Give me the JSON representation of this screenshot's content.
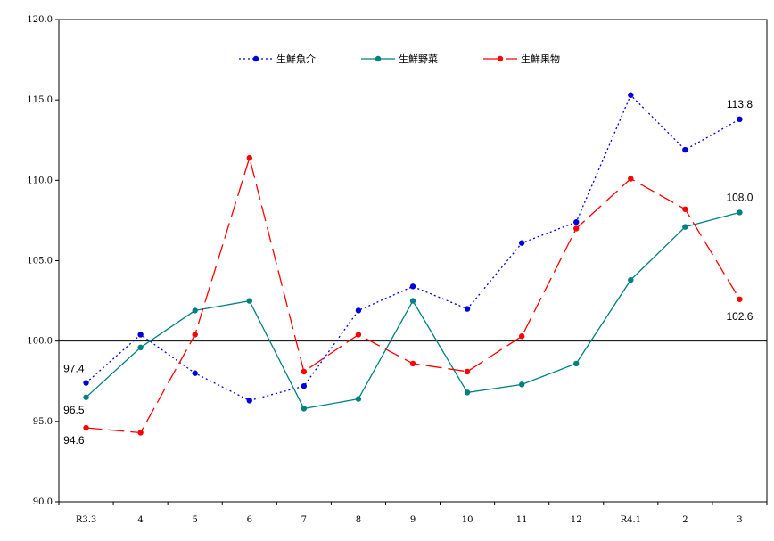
{
  "chart_data": {
    "type": "line",
    "categories": [
      "R3.3",
      "4",
      "5",
      "6",
      "7",
      "8",
      "9",
      "10",
      "11",
      "12",
      "R4.1",
      "2",
      "3"
    ],
    "ylim": [
      90,
      120
    ],
    "yticks": [
      "90.0",
      "95.0",
      "100.0",
      "105.0",
      "110.0",
      "115.0",
      "120.0"
    ],
    "reference_line": 100,
    "grid": false,
    "legend_position": "top",
    "series": [
      {
        "name": "生鮮魚介",
        "color": "#0000dd",
        "style": "dotted",
        "values": [
          97.4,
          100.4,
          98.0,
          96.3,
          97.2,
          101.9,
          103.4,
          102.0,
          106.1,
          107.4,
          115.3,
          111.9,
          113.8
        ]
      },
      {
        "name": "生鮮野菜",
        "color": "#008080",
        "style": "solid",
        "values": [
          96.5,
          99.6,
          101.9,
          102.5,
          95.8,
          96.4,
          102.5,
          96.8,
          97.3,
          98.6,
          103.8,
          107.1,
          108.0
        ]
      },
      {
        "name": "生鮮果物",
        "color": "#ff0000",
        "style": "dashed",
        "values": [
          94.6,
          94.3,
          100.4,
          111.4,
          98.1,
          100.4,
          98.6,
          98.1,
          100.3,
          107.0,
          110.1,
          108.2,
          102.6
        ]
      }
    ],
    "annotations": [
      {
        "text": "97.4",
        "series": 0,
        "index": 0,
        "pos": "above-left"
      },
      {
        "text": "96.5",
        "series": 1,
        "index": 0,
        "pos": "below-left"
      },
      {
        "text": "94.6",
        "series": 2,
        "index": 0,
        "pos": "below-left"
      },
      {
        "text": "113.8",
        "series": 0,
        "index": 12,
        "pos": "above"
      },
      {
        "text": "108.0",
        "series": 1,
        "index": 12,
        "pos": "above"
      },
      {
        "text": "102.6",
        "series": 2,
        "index": 12,
        "pos": "below"
      }
    ]
  }
}
